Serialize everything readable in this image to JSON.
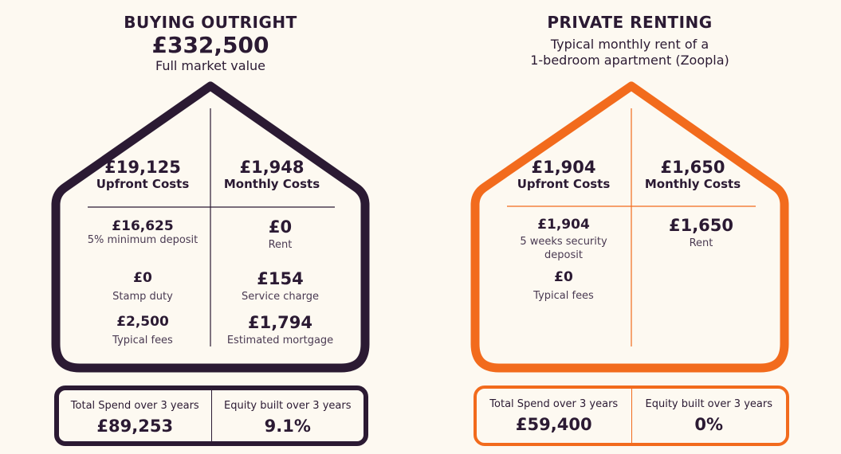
{
  "colors": {
    "background": "#fdf9f1",
    "buying_accent": "#2b1a33",
    "renting_accent": "#f26b1d",
    "text": "#2b1a33"
  },
  "buying": {
    "title": "BUYING OUTRIGHT",
    "headline_value": "£332,500",
    "subtitle": "Full market value",
    "upfront": {
      "value": "£19,125",
      "label": "Upfront Costs",
      "items": [
        {
          "value": "£16,625",
          "label": "5% minimum deposit"
        },
        {
          "value": "£0",
          "label": "Stamp duty"
        },
        {
          "value": "£2,500",
          "label": "Typical fees"
        }
      ]
    },
    "monthly": {
      "value": "£1,948",
      "label": "Monthly Costs",
      "items": [
        {
          "value": "£0",
          "label": "Rent"
        },
        {
          "value": "£154",
          "label": "Service charge"
        },
        {
          "value": "£1,794",
          "label": "Estimated mortgage"
        }
      ]
    },
    "summary": {
      "total_label": "Total Spend over 3 years",
      "total_value": "£89,253",
      "equity_label": "Equity built over 3 years",
      "equity_value": "9.1%"
    }
  },
  "renting": {
    "title": "PRIVATE RENTING",
    "subtitle_line1": "Typical monthly rent of a",
    "subtitle_line2": "1-bedroom apartment (Zoopla)",
    "upfront": {
      "value": "£1,904",
      "label": "Upfront Costs",
      "items": [
        {
          "value": "£1,904",
          "label_line1": "5 weeks security",
          "label_line2": "deposit"
        },
        {
          "value": "£0",
          "label": "Typical fees"
        }
      ]
    },
    "monthly": {
      "value": "£1,650",
      "label": "Monthly Costs",
      "items": [
        {
          "value": "£1,650",
          "label": "Rent"
        }
      ]
    },
    "summary": {
      "total_label": "Total Spend over 3 years",
      "total_value": "£59,400",
      "equity_label": "Equity built over 3 years",
      "equity_value": "0%"
    }
  }
}
